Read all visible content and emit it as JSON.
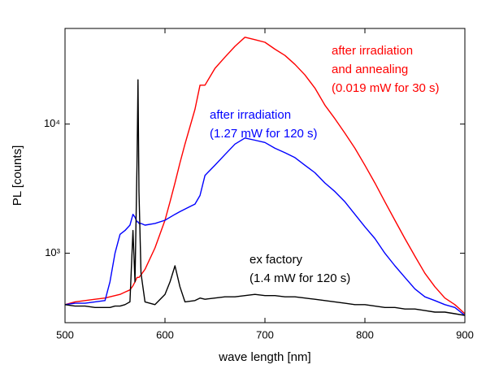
{
  "chart_data": {
    "type": "line",
    "xlabel": "wave length [nm]",
    "ylabel": "PL [counts]",
    "x": [
      500,
      510,
      520,
      530,
      540,
      545,
      550,
      555,
      560,
      565,
      568,
      570,
      572,
      573,
      574,
      576,
      580,
      590,
      600,
      605,
      610,
      615,
      620,
      630,
      635,
      640,
      650,
      660,
      670,
      680,
      690,
      700,
      710,
      720,
      730,
      740,
      750,
      760,
      770,
      780,
      790,
      800,
      810,
      820,
      830,
      840,
      850,
      860,
      870,
      880,
      890,
      900
    ],
    "series": [
      {
        "name": "after irradiation and annealing",
        "color": "#ff0000",
        "values": [
          400,
          420,
          430,
          440,
          450,
          460,
          470,
          480,
          500,
          520,
          560,
          600,
          650,
          650,
          650,
          680,
          750,
          1100,
          1800,
          2500,
          3500,
          5000,
          7000,
          13000,
          20000,
          20000,
          27000,
          33000,
          40000,
          47000,
          45000,
          43000,
          38000,
          34000,
          29000,
          24000,
          19000,
          14000,
          11000,
          8500,
          6500,
          4800,
          3500,
          2500,
          1800,
          1300,
          950,
          700,
          550,
          450,
          400,
          340
        ]
      },
      {
        "name": "after irradiation",
        "color": "#0000ff",
        "values": [
          400,
          410,
          410,
          420,
          430,
          600,
          1000,
          1400,
          1500,
          1650,
          2000,
          1900,
          1750,
          1750,
          1700,
          1700,
          1650,
          1700,
          1800,
          1900,
          2000,
          2100,
          2200,
          2400,
          2800,
          4000,
          4800,
          5800,
          7000,
          7800,
          7500,
          7200,
          6500,
          6000,
          5500,
          4800,
          4200,
          3500,
          3000,
          2500,
          2000,
          1600,
          1300,
          1000,
          800,
          650,
          530,
          460,
          430,
          400,
          380,
          330
        ]
      },
      {
        "name": "ex factory",
        "color": "#000000",
        "values": [
          400,
          390,
          390,
          380,
          380,
          380,
          390,
          390,
          400,
          420,
          1500,
          600,
          5000,
          22000,
          3000,
          700,
          420,
          400,
          480,
          600,
          800,
          550,
          420,
          430,
          450,
          440,
          450,
          460,
          460,
          470,
          480,
          470,
          470,
          460,
          460,
          450,
          440,
          430,
          420,
          410,
          400,
          400,
          390,
          380,
          380,
          370,
          370,
          360,
          350,
          350,
          340,
          330
        ]
      }
    ],
    "annotations": [
      {
        "lines": [
          "after irradiation",
          "and annealing",
          "(0.019 mW for 30 s)"
        ],
        "color": "#ff0000"
      },
      {
        "lines": [
          "after irradiation",
          "(1.27 mW for 120 s)"
        ],
        "color": "#0000ff"
      },
      {
        "lines": [
          "ex factory",
          "(1.4 mW for 120 s)"
        ],
        "color": "#000000"
      }
    ],
    "xlim": [
      500,
      900
    ],
    "xticks": [
      500,
      600,
      700,
      800,
      900
    ],
    "ylim": [
      290,
      55000
    ],
    "ylog": true,
    "yticks": [
      {
        "value": 1000,
        "label": "10³"
      },
      {
        "value": 10000,
        "label": "10⁴"
      }
    ],
    "grid": false
  }
}
